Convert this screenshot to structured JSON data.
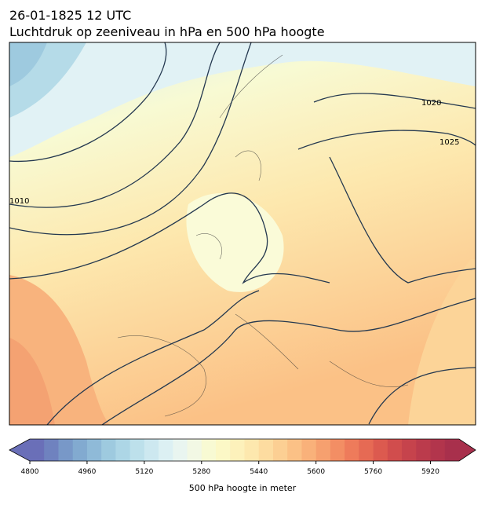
{
  "header": {
    "title": "26-01-1825 12 UTC",
    "subtitle": "Luchtdruk op zeeniveau in hPa en 500 hPa hoogte"
  },
  "map": {
    "contour_labels": [
      "1010",
      "1020",
      "1025"
    ]
  },
  "colorbar": {
    "label": "500 hPa hoogte in meter",
    "lim": [
      4800,
      6000
    ],
    "ticks": [
      4800,
      4960,
      5120,
      5280,
      5440,
      5600,
      5760,
      5920
    ],
    "colors": [
      "#6a6fb8",
      "#6f82bf",
      "#7898c8",
      "#82aad0",
      "#8fbad8",
      "#9ecadf",
      "#add6e6",
      "#bde0eb",
      "#cde8f0",
      "#dcf0f3",
      "#e9f5f0",
      "#f2f8e4",
      "#f8fad3",
      "#fcf8c6",
      "#fdf1bb",
      "#fde8ae",
      "#fddca0",
      "#fccf93",
      "#fbc186",
      "#f9b17a",
      "#f6a06f",
      "#f38e64",
      "#ee7b5b",
      "#e66a54",
      "#dc5a4f",
      "#d14d4d",
      "#c6434c",
      "#bb3b4c",
      "#b2354c",
      "#a8304c"
    ]
  }
}
